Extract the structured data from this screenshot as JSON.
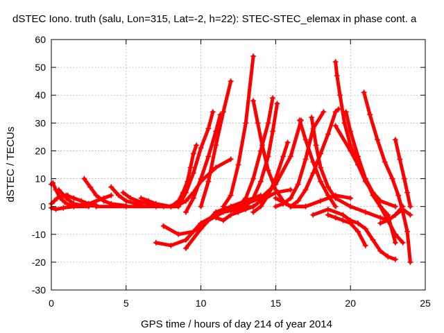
{
  "chart_data": {
    "type": "scatter",
    "title": "dSTEC Iono. truth (salu, Lon=315, Lat=-2, h=22): STEC-STEC_elemax in phase cont. a",
    "xlabel": "GPS time / hours of day 214 of year 2014",
    "ylabel": "dSTEC  / TECUs",
    "xlim": [
      0,
      25
    ],
    "ylim": [
      -30,
      60
    ],
    "xticks": [
      0,
      5,
      10,
      15,
      20,
      25
    ],
    "yticks": [
      -30,
      -20,
      -10,
      0,
      10,
      20,
      30,
      40,
      50,
      60
    ],
    "grid": true,
    "marker": "plus",
    "color": "#ff0000",
    "series": [
      {
        "x": [
          0,
          0.1,
          0.3,
          0.6,
          0.9,
          1.2,
          1.5
        ],
        "y": [
          8,
          8.5,
          6,
          3,
          1.5,
          0.5,
          0.2
        ]
      },
      {
        "x": [
          0,
          0.2,
          0.4,
          0.8,
          1.1
        ],
        "y": [
          1,
          2,
          3,
          4,
          4
        ]
      },
      {
        "x": [
          0,
          0.3,
          0.8,
          1.5,
          2.5
        ],
        "y": [
          -0.5,
          -1,
          -0.5,
          0,
          0
        ]
      },
      {
        "x": [
          0.5,
          1,
          1.5,
          2,
          3
        ],
        "y": [
          6,
          3,
          1,
          0.5,
          0.2
        ]
      },
      {
        "x": [
          1,
          1.5,
          2,
          2.5,
          3
        ],
        "y": [
          4,
          3,
          2,
          1,
          0.5
        ]
      },
      {
        "x": [
          2.2,
          2.6,
          3,
          3.5,
          4,
          5
        ],
        "y": [
          10,
          7,
          4,
          2,
          1,
          0.3
        ]
      },
      {
        "x": [
          1.5,
          2.5,
          3.5,
          4
        ],
        "y": [
          0,
          1,
          3,
          4
        ]
      },
      {
        "x": [
          4,
          4.5,
          5,
          6
        ],
        "y": [
          7,
          4,
          2,
          0.5
        ]
      },
      {
        "x": [
          4.8,
          5.3,
          6,
          7
        ],
        "y": [
          5,
          3,
          1.5,
          0.5
        ]
      },
      {
        "x": [
          6,
          6.5,
          7,
          8
        ],
        "y": [
          3,
          2,
          1,
          0
        ]
      },
      {
        "x": [
          3,
          5,
          7,
          8,
          8.5
        ],
        "y": [
          0,
          0,
          0,
          0,
          0
        ]
      },
      {
        "x": [
          7.5,
          8,
          8.5,
          9,
          9.5,
          10,
          11,
          12
        ],
        "y": [
          0,
          0,
          0.5,
          2,
          5,
          9,
          14,
          17
        ]
      },
      {
        "x": [
          8,
          8.5,
          8.8,
          9.1,
          9.3,
          9.5,
          9.7
        ],
        "y": [
          0,
          2,
          5,
          9,
          14,
          19,
          22
        ]
      },
      {
        "x": [
          8.5,
          9,
          9.5,
          10,
          10.5,
          10.8
        ],
        "y": [
          0,
          5,
          12,
          21,
          28,
          34
        ]
      },
      {
        "x": [
          9,
          9.5,
          10,
          10.5,
          11,
          11.3
        ],
        "y": [
          -2,
          3,
          10,
          18,
          27,
          33
        ]
      },
      {
        "x": [
          10,
          10.5,
          11,
          11.5,
          12
        ],
        "y": [
          0,
          9,
          22,
          34,
          45
        ]
      },
      {
        "x": [
          7,
          8,
          9,
          10,
          11,
          12,
          13
        ],
        "y": [
          -13,
          -14,
          -12,
          -6,
          -3,
          -1,
          0
        ]
      },
      {
        "x": [
          7.5,
          8.5,
          9.5,
          10.5,
          11.5,
          12.5,
          13.5
        ],
        "y": [
          -7,
          -10,
          -9,
          -5,
          -2,
          -1,
          0
        ]
      },
      {
        "x": [
          9,
          10,
          11,
          12,
          13,
          14
        ],
        "y": [
          -15,
          -8,
          -2,
          0,
          2,
          4
        ]
      },
      {
        "x": [
          11.5,
          12,
          12.5,
          13,
          13.5
        ],
        "y": [
          0,
          4,
          15,
          30,
          54
        ]
      },
      {
        "x": [
          13.5,
          13.8,
          14.1,
          14.5,
          15,
          15.5,
          16,
          17
        ],
        "y": [
          38,
          30,
          22,
          13,
          6,
          2,
          0,
          0
        ]
      },
      {
        "x": [
          14.8,
          14.5,
          14,
          13.5,
          13,
          12.5,
          12
        ],
        "y": [
          39,
          30,
          20,
          10,
          3,
          0,
          -1
        ]
      },
      {
        "x": [
          15.1,
          14.8,
          14.5,
          14,
          13.5,
          13,
          12.5
        ],
        "y": [
          37,
          27,
          18,
          9,
          3,
          0,
          -1
        ]
      },
      {
        "x": [
          11,
          11.5,
          12,
          12.5,
          13,
          13.5,
          14,
          15,
          16
        ],
        "y": [
          -4,
          -5,
          -3,
          -2,
          -1,
          0,
          2,
          5,
          6
        ]
      },
      {
        "x": [
          12,
          13,
          14,
          15,
          16,
          16.7
        ],
        "y": [
          0,
          1,
          3,
          8,
          18,
          31
        ]
      },
      {
        "x": [
          13.5,
          14,
          14.5,
          15,
          15.5,
          15.8
        ],
        "y": [
          -2,
          0,
          4,
          10,
          18,
          23
        ]
      },
      {
        "x": [
          16.6,
          17,
          17.5,
          18,
          18.5,
          19
        ],
        "y": [
          31,
          24,
          16,
          9,
          4,
          0
        ]
      },
      {
        "x": [
          17.4,
          17.7,
          18,
          18.5,
          19,
          20
        ],
        "y": [
          32,
          22,
          14,
          7,
          3,
          0
        ]
      },
      {
        "x": [
          15,
          15.5,
          16,
          16.5,
          17,
          17.5,
          18.2
        ],
        "y": [
          0,
          1,
          3,
          8,
          17,
          28,
          34
        ]
      },
      {
        "x": [
          16,
          16.5,
          17,
          17.5,
          18,
          18.5,
          19,
          19.2
        ],
        "y": [
          0,
          2,
          6,
          12,
          19,
          26,
          34,
          35
        ]
      },
      {
        "x": [
          19,
          19.1,
          19.3,
          19.6,
          20,
          20.5,
          21,
          21.5,
          22,
          23
        ],
        "y": [
          52,
          47,
          40,
          30,
          22,
          15,
          9,
          5,
          2,
          0
        ]
      },
      {
        "x": [
          19.7,
          20,
          20.5,
          21,
          21.5,
          22,
          22.5,
          23
        ],
        "y": [
          34,
          27,
          18,
          10,
          4,
          0,
          -3,
          -13
        ]
      },
      {
        "x": [
          17.5,
          18.5,
          19.5,
          20,
          20.5,
          21,
          21.5,
          22,
          22.5,
          23
        ],
        "y": [
          -3,
          -1,
          -3,
          -5,
          -6,
          -8,
          -12,
          -16,
          -18,
          -19
        ]
      },
      {
        "x": [
          18.5,
          19,
          19.5,
          20,
          20.5,
          21
        ],
        "y": [
          -3,
          -4,
          -5,
          -6,
          -9,
          -14
        ]
      },
      {
        "x": [
          19,
          20,
          21,
          22,
          23,
          23.5
        ],
        "y": [
          29,
          20,
          10,
          0,
          -10,
          -13
        ]
      },
      {
        "x": [
          20.9,
          21.3,
          21.8,
          22.3,
          22.8,
          23.2,
          23.5,
          23.8,
          24
        ],
        "y": [
          41,
          33,
          24,
          16,
          10,
          4,
          -2,
          -9,
          -20
        ]
      },
      {
        "x": [
          23,
          23.3,
          23.6,
          23.8,
          24
        ],
        "y": [
          24,
          17,
          10,
          5,
          0
        ]
      },
      {
        "x": [
          20,
          21,
          22,
          22.5,
          23,
          23.5,
          24
        ],
        "y": [
          0,
          -2,
          -4,
          -5,
          -3,
          -1,
          -3
        ]
      },
      {
        "x": [
          22,
          22.5,
          23,
          23.5
        ],
        "y": [
          -6,
          -5,
          -3,
          0
        ]
      },
      {
        "x": [
          15,
          16,
          17,
          18,
          19,
          20
        ],
        "y": [
          3,
          0,
          0,
          2,
          4,
          3
        ]
      }
    ]
  }
}
